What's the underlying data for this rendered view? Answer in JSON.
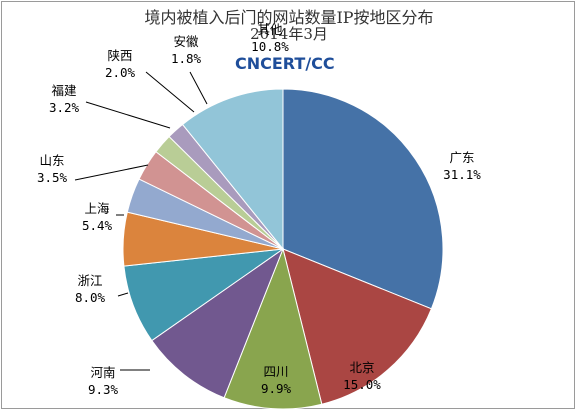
{
  "chart_data": {
    "type": "pie",
    "title": "境内被植入后门的网站数量IP按地区分布",
    "subtitle": "2014年3月",
    "watermark": "CNCERT/CC",
    "slices": [
      {
        "name": "广东",
        "value": 31.1,
        "label": "31.1%",
        "color": "#4572a7"
      },
      {
        "name": "北京",
        "value": 15.0,
        "label": "15.0%",
        "color": "#aa4643"
      },
      {
        "name": "四川",
        "value": 9.9,
        "label": "9.9%",
        "color": "#89a54e"
      },
      {
        "name": "河南",
        "value": 9.3,
        "label": "9.3%",
        "color": "#71588f"
      },
      {
        "name": "浙江",
        "value": 8.0,
        "label": "8.0%",
        "color": "#4198af"
      },
      {
        "name": "上海",
        "value": 5.4,
        "label": "5.4%",
        "color": "#db843d"
      },
      {
        "name": "山东",
        "value": 3.5,
        "label": "3.5%",
        "color": "#93a9cf"
      },
      {
        "name": "福建",
        "value": 3.2,
        "label": "3.2%",
        "color": "#d19392"
      },
      {
        "name": "陕西",
        "value": 2.0,
        "label": "2.0%",
        "color": "#b9cd96"
      },
      {
        "name": "安徽",
        "value": 1.8,
        "label": "1.8%",
        "color": "#a99bbd"
      },
      {
        "name": "其他",
        "value": 10.8,
        "label": "10.8%",
        "color": "#92c5d8"
      }
    ]
  }
}
